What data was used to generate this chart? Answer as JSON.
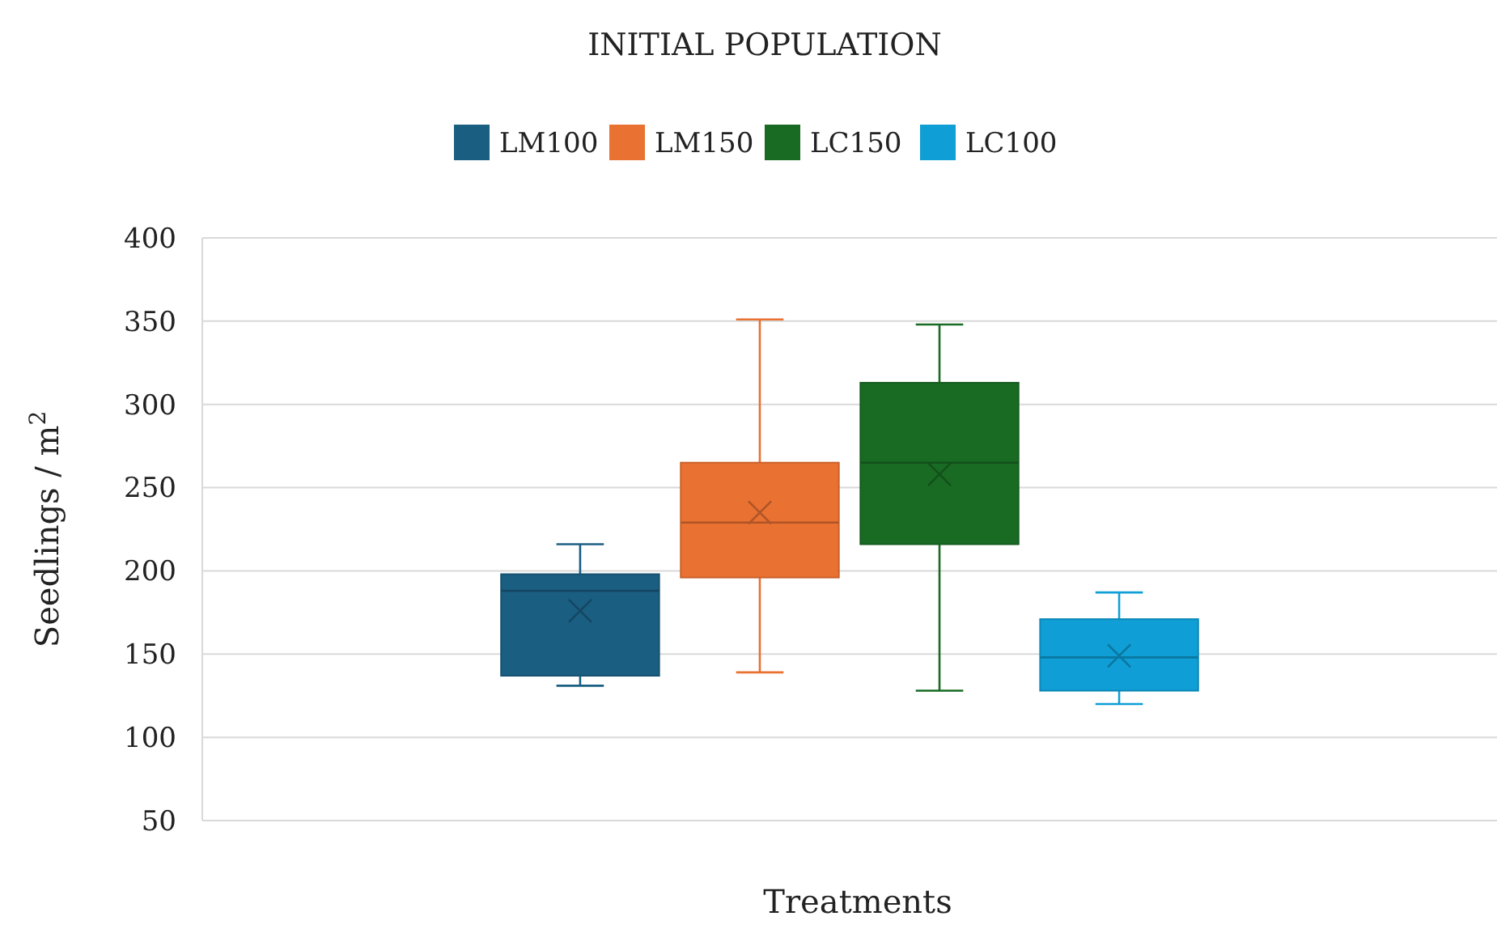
{
  "chart_data": {
    "type": "box",
    "title": "INITIAL POPULATION",
    "xlabel": "Treatments",
    "ylabel": "Seedlings / m$^{2}$",
    "categories": [
      null
    ],
    "series": [
      {
        "name": "LM100",
        "color": "#1a5e82",
        "boxes": [
          {
            "low": 131,
            "q1": 137,
            "median": 188,
            "q3": 198,
            "high": 216,
            "mean": 176
          }
        ]
      },
      {
        "name": "LM150",
        "color": "#e97132",
        "boxes": [
          {
            "low": 139,
            "q1": 196,
            "median": 229,
            "q3": 265,
            "high": 351,
            "mean": 235
          }
        ]
      },
      {
        "name": "LC150",
        "color": "#196b24",
        "boxes": [
          {
            "low": 128,
            "q1": 216,
            "median": 265,
            "q3": 313,
            "high": 348,
            "mean": 258
          }
        ]
      },
      {
        "name": "LC100",
        "color": "#0f9ed5",
        "boxes": [
          {
            "low": 120,
            "q1": 128,
            "median": 148,
            "q3": 171,
            "high": 187,
            "mean": 149
          }
        ]
      }
    ],
    "ylim": [
      50,
      400
    ],
    "yticks": [
      50,
      100,
      150,
      200,
      250,
      300,
      350,
      400
    ],
    "grid": "y",
    "legend": "top",
    "marker": "cross"
  }
}
